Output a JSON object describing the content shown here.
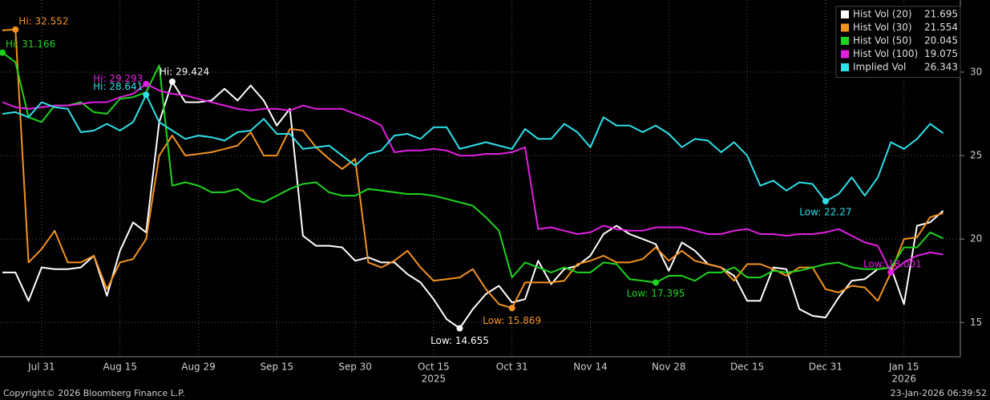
{
  "chart_data": {
    "type": "line",
    "categories": [
      null,
      null,
      null,
      "Jul 31",
      null,
      null,
      null,
      null,
      null,
      "Aug 15",
      null,
      null,
      null,
      null,
      null,
      "Aug 29",
      null,
      null,
      null,
      null,
      null,
      "Sep 15",
      null,
      null,
      null,
      null,
      null,
      "Sep 30",
      null,
      null,
      null,
      null,
      null,
      "Oct 15",
      null,
      null,
      null,
      null,
      null,
      "Oct 31",
      null,
      null,
      null,
      null,
      null,
      "Nov 14",
      null,
      null,
      null,
      null,
      null,
      "Nov 28",
      null,
      null,
      null,
      null,
      null,
      "Dec 15",
      null,
      null,
      null,
      null,
      null,
      "Dec 31",
      null,
      null,
      null,
      null,
      null,
      "Jan 15",
      null,
      null,
      null
    ],
    "year_labels": [
      {
        "label": "2025",
        "category": 33
      },
      {
        "label": "2026",
        "category": 69
      }
    ],
    "series": [
      {
        "name": "Hist Vol (20)",
        "color": "#ffffff",
        "values": [
          18.0,
          18.0,
          16.3,
          18.3,
          18.2,
          18.2,
          18.3,
          19.0,
          16.6,
          19.3,
          21.0,
          20.4,
          27.0,
          29.424,
          28.2,
          28.2,
          28.3,
          29.0,
          28.3,
          29.2,
          28.3,
          26.8,
          27.8,
          20.2,
          19.6,
          19.6,
          19.5,
          18.7,
          18.9,
          18.6,
          18.6,
          17.9,
          17.4,
          16.4,
          15.2,
          14.655,
          15.8,
          16.7,
          17.2,
          16.2,
          16.4,
          18.7,
          17.3,
          18.2,
          18.4,
          19.0,
          20.3,
          20.8,
          20.3,
          20.0,
          19.7,
          18.1,
          19.8,
          19.3,
          18.5,
          18.3,
          17.8,
          16.3,
          16.3,
          18.3,
          18.2,
          15.8,
          15.4,
          15.3,
          16.5,
          17.5,
          17.6,
          18.2,
          18.3,
          16.1,
          20.8,
          21.0,
          21.695
        ]
      },
      {
        "name": "Hist Vol (30)",
        "color": "#f39220",
        "values": [
          32.5,
          32.552,
          18.6,
          19.4,
          20.5,
          18.6,
          18.6,
          19.0,
          17.0,
          18.6,
          18.8,
          20.0,
          25.0,
          26.2,
          25.0,
          25.1,
          25.2,
          25.4,
          25.6,
          26.4,
          25.0,
          25.0,
          26.6,
          26.5,
          25.5,
          24.8,
          24.2,
          24.8,
          18.6,
          18.3,
          18.7,
          19.3,
          18.3,
          17.5,
          17.6,
          17.7,
          18.2,
          17.0,
          16.1,
          15.869,
          17.4,
          17.4,
          17.4,
          17.5,
          18.5,
          18.7,
          19.0,
          18.6,
          18.6,
          18.8,
          19.5,
          18.7,
          19.3,
          18.7,
          18.5,
          18.3,
          17.5,
          18.5,
          18.5,
          18.2,
          17.8,
          18.3,
          18.3,
          17.0,
          16.8,
          17.2,
          17.1,
          16.3,
          18.0,
          20.0,
          20.1,
          21.3,
          21.554
        ]
      },
      {
        "name": "Hist Vol (50)",
        "color": "#1ed41e",
        "values": [
          31.166,
          30.6,
          27.3,
          27.0,
          28.0,
          28.0,
          28.2,
          27.6,
          27.5,
          28.4,
          28.5,
          28.8,
          30.4,
          23.2,
          23.4,
          23.2,
          22.8,
          22.8,
          23.0,
          22.4,
          22.2,
          22.6,
          23.0,
          23.3,
          23.4,
          22.8,
          22.6,
          22.6,
          23.0,
          22.9,
          22.8,
          22.7,
          22.7,
          22.6,
          22.4,
          22.2,
          22.0,
          21.3,
          20.5,
          17.7,
          18.6,
          18.3,
          18.0,
          18.3,
          18.0,
          18.0,
          18.6,
          18.5,
          17.6,
          17.5,
          17.395,
          17.8,
          17.8,
          17.5,
          18.0,
          18.0,
          18.3,
          17.7,
          17.7,
          18.1,
          18.0,
          18.1,
          18.3,
          18.5,
          18.6,
          18.3,
          18.2,
          18.2,
          18.3,
          19.5,
          19.5,
          20.4,
          20.045
        ]
      },
      {
        "name": "Hist Vol (100)",
        "color": "#e020e0",
        "values": [
          28.2,
          27.9,
          27.8,
          27.9,
          28.0,
          28.0,
          28.1,
          28.2,
          28.2,
          28.5,
          28.7,
          29.293,
          28.9,
          28.7,
          28.6,
          28.4,
          28.2,
          28.0,
          27.8,
          27.7,
          27.8,
          27.8,
          27.7,
          28.0,
          27.8,
          27.8,
          27.8,
          27.5,
          27.2,
          26.8,
          25.2,
          25.3,
          25.3,
          25.4,
          25.3,
          25.0,
          25.0,
          25.1,
          25.1,
          25.2,
          25.5,
          20.6,
          20.7,
          20.5,
          20.3,
          20.4,
          20.8,
          20.6,
          20.5,
          20.5,
          20.7,
          20.7,
          20.7,
          20.5,
          20.3,
          20.3,
          20.5,
          20.6,
          20.3,
          20.3,
          20.2,
          20.3,
          20.3,
          20.4,
          20.6,
          20.2,
          19.8,
          19.6,
          18.001,
          18.6,
          19.0,
          19.2,
          19.075
        ]
      },
      {
        "name": "Implied Vol",
        "color": "#2ee0e8",
        "values": [
          27.5,
          27.6,
          27.3,
          28.2,
          27.9,
          27.8,
          26.4,
          26.5,
          26.9,
          26.5,
          27.0,
          28.641,
          27.0,
          26.5,
          26.0,
          26.2,
          26.1,
          25.9,
          26.4,
          26.5,
          27.2,
          26.3,
          26.3,
          25.4,
          25.5,
          25.6,
          25.0,
          24.4,
          25.1,
          25.3,
          26.2,
          26.3,
          26.0,
          26.7,
          26.7,
          25.4,
          25.6,
          25.8,
          25.6,
          25.4,
          26.6,
          26.0,
          26.0,
          26.9,
          26.4,
          25.5,
          27.3,
          26.8,
          26.8,
          26.4,
          26.8,
          26.3,
          25.5,
          26.0,
          25.9,
          25.2,
          25.8,
          25.0,
          23.2,
          23.5,
          22.9,
          23.4,
          23.3,
          22.27,
          22.7,
          23.7,
          22.6,
          23.7,
          25.8,
          25.4,
          26.0,
          26.9,
          26.343
        ]
      }
    ],
    "annotations": [
      {
        "series": 1,
        "index": 1,
        "label": "Hi: 32.552"
      },
      {
        "series": 2,
        "index": 0,
        "label": "Hi: 31.166"
      },
      {
        "series": 4,
        "index": 11,
        "label": "Hi: 28.641"
      },
      {
        "series": 3,
        "index": 11,
        "label": "Hi: 29.293"
      },
      {
        "series": 0,
        "index": 13,
        "label": "Hi: 29.424"
      },
      {
        "series": 0,
        "index": 35,
        "label": "Low: 14.655"
      },
      {
        "series": 1,
        "index": 39,
        "label": "Low: 15.869"
      },
      {
        "series": 2,
        "index": 50,
        "label": "Low: 17.395"
      },
      {
        "series": 4,
        "index": 63,
        "label": "Low: 22.27"
      },
      {
        "series": 3,
        "index": 68,
        "label": "Low: 18.001"
      }
    ],
    "ylim": [
      13,
      34.32
    ],
    "yticks": [
      15,
      20,
      25,
      30
    ],
    "grid": true,
    "legend": "upper right",
    "footer_left": "Copyright© 2026 Bloomberg Finance L.P.",
    "footer_right": "23-Jan-2026 06:39:52"
  }
}
